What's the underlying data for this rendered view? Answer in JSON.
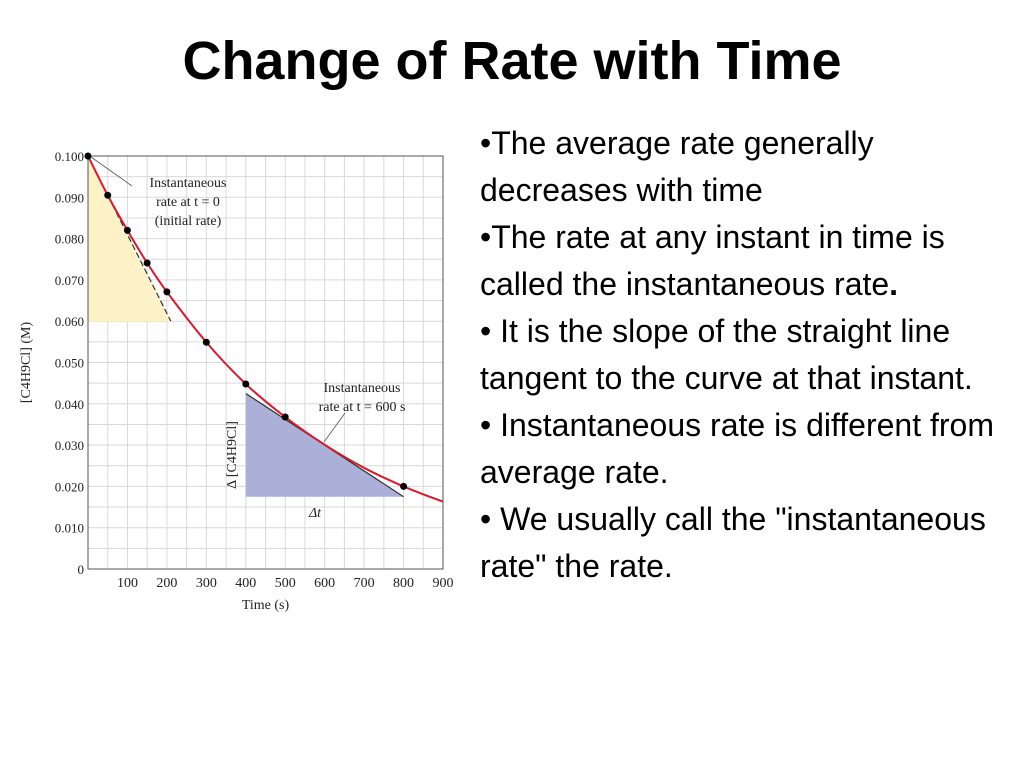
{
  "slide": {
    "title": "Change of Rate with Time",
    "bullets": [
      {
        "text": "•The average rate generally decreases with time",
        "bold_tail": ""
      },
      {
        "text": "•The rate at any instant in time is called the instantaneous rate",
        "bold_tail": "."
      },
      {
        "text": "• It is the slope of the straight line tangent to the curve at that instant.",
        "bold_tail": ""
      },
      {
        "text": "• Instantaneous rate is different from average rate.",
        "bold_tail": ""
      },
      {
        "text": "•  We usually call the \"instantaneous rate\" the rate.",
        "bold_tail": ""
      }
    ]
  },
  "chart_data": {
    "type": "scatter",
    "xlabel": "Time (s)",
    "ylabel": "[C4H9Cl] (M)",
    "xlim": [
      0,
      900
    ],
    "ylim": [
      0,
      0.1
    ],
    "xticks": [
      100,
      200,
      300,
      400,
      500,
      600,
      700,
      800,
      900
    ],
    "xtick_labels": [
      "100",
      "200",
      "300",
      "400",
      "500",
      "600",
      "700",
      "800",
      "900"
    ],
    "yticks": [
      0,
      0.01,
      0.02,
      0.03,
      0.04,
      0.05,
      0.06,
      0.07,
      0.08,
      0.09,
      0.1
    ],
    "ytick_labels": [
      "0",
      "0.010",
      "0.020",
      "0.030",
      "0.040",
      "0.050",
      "0.060",
      "0.070",
      "0.080",
      "0.090",
      "0.100"
    ],
    "grid": true,
    "points": [
      {
        "x": 0,
        "y": 0.1
      },
      {
        "x": 50,
        "y": 0.0905
      },
      {
        "x": 100,
        "y": 0.082
      },
      {
        "x": 150,
        "y": 0.0741
      },
      {
        "x": 200,
        "y": 0.0671
      },
      {
        "x": 300,
        "y": 0.0549
      },
      {
        "x": 400,
        "y": 0.0448
      },
      {
        "x": 500,
        "y": 0.0368
      },
      {
        "x": 800,
        "y": 0.02
      }
    ],
    "curve": [
      {
        "x": 0,
        "y": 0.1
      },
      {
        "x": 50,
        "y": 0.0905
      },
      {
        "x": 100,
        "y": 0.082
      },
      {
        "x": 150,
        "y": 0.0741
      },
      {
        "x": 200,
        "y": 0.0671
      },
      {
        "x": 300,
        "y": 0.0549
      },
      {
        "x": 400,
        "y": 0.0448
      },
      {
        "x": 500,
        "y": 0.0368
      },
      {
        "x": 600,
        "y": 0.0301
      },
      {
        "x": 700,
        "y": 0.0245
      },
      {
        "x": 800,
        "y": 0.02
      },
      {
        "x": 900,
        "y": 0.0163
      }
    ],
    "curve_color": "#d81b2f",
    "tangent_initial": {
      "x1": 0,
      "y1": 0.1,
      "x2": 210,
      "y2": 0.06,
      "shade_color": "#fdf1c8"
    },
    "tangent_600": {
      "x1": 400,
      "y1": 0.0425,
      "x2": 800,
      "y2": 0.0175,
      "shade_color": "#aab0d8"
    },
    "annotations": {
      "initial_lines": [
        "Instantaneous",
        "rate at t = 0",
        "(initial rate)"
      ],
      "at600_lines": [
        "Instantaneous",
        "rate at t = 600 s"
      ],
      "delta_t": "Δt",
      "delta_conc": "Δ [C4H9Cl]"
    }
  }
}
